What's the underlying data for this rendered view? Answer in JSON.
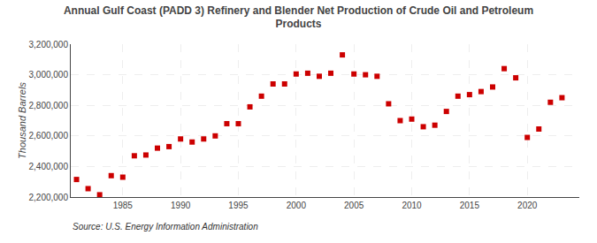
{
  "chart_data": {
    "type": "scatter",
    "title": "Annual Gulf Coast (PADD 3) Refinery and Blender Net Production of Crude Oil and Petroleum\nProducts",
    "ylabel": "Thousand Barrels",
    "annotation": "Source: U.S. Energy Information Administration",
    "x": [
      1981,
      1982,
      1983,
      1984,
      1985,
      1986,
      1987,
      1988,
      1989,
      1990,
      1991,
      1992,
      1993,
      1994,
      1995,
      1996,
      1997,
      1998,
      1999,
      2000,
      2001,
      2002,
      2003,
      2004,
      2005,
      2006,
      2007,
      2008,
      2009,
      2010,
      2011,
      2012,
      2013,
      2014,
      2015,
      2016,
      2017,
      2018,
      2019,
      2020,
      2021,
      2022,
      2023
    ],
    "values": [
      2315000,
      2255000,
      2215000,
      2340000,
      2330000,
      2470000,
      2475000,
      2520000,
      2530000,
      2580000,
      2560000,
      2580000,
      2600000,
      2680000,
      2680000,
      2790000,
      2860000,
      2940000,
      2940000,
      3005000,
      3010000,
      2990000,
      3010000,
      3130000,
      3005000,
      3000000,
      2990000,
      2810000,
      2700000,
      2710000,
      2660000,
      2670000,
      2760000,
      2860000,
      2870000,
      2890000,
      2920000,
      3040000,
      2980000,
      2590000,
      2645000,
      2820000,
      2850000
    ],
    "color": "#cc0000",
    "marker": "square",
    "xlim": [
      1980.5,
      2024.5
    ],
    "xticks": [
      1985,
      1990,
      1995,
      2000,
      2005,
      2010,
      2015,
      2020
    ],
    "ylim": [
      2200000,
      3200000
    ],
    "yticks": [
      {
        "value": 2200000,
        "label": "2,200,000"
      },
      {
        "value": 2400000,
        "label": "2,400,000"
      },
      {
        "value": 2600000,
        "label": "2,600,000"
      },
      {
        "value": 2800000,
        "label": "2,800,000"
      },
      {
        "value": 3000000,
        "label": "3,000,000"
      },
      {
        "value": 3200000,
        "label": "3,200,000"
      }
    ],
    "grid": true
  }
}
